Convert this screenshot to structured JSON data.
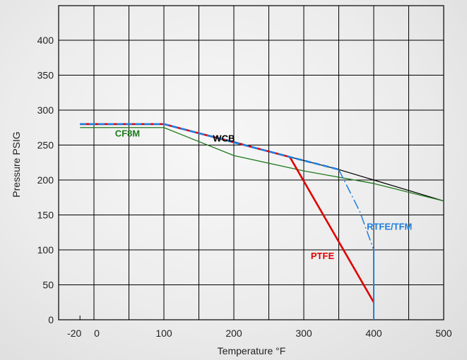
{
  "chart_data": {
    "type": "line",
    "title": "",
    "xlabel": "Temperature °F",
    "ylabel": "Pressure PSIG",
    "xlim": [
      -20,
      500
    ],
    "ylim": [
      0,
      450
    ],
    "x_ticks": [
      {
        "value": -20,
        "label": "-20"
      },
      {
        "value": 0,
        "label": "0"
      },
      {
        "value": 100,
        "label": "100"
      },
      {
        "value": 200,
        "label": "200"
      },
      {
        "value": 300,
        "label": "300"
      },
      {
        "value": 400,
        "label": "400"
      },
      {
        "value": 500,
        "label": "500"
      }
    ],
    "x_gridlines": [
      0,
      50,
      100,
      150,
      200,
      250,
      300,
      350,
      400,
      450,
      500
    ],
    "y_ticks": [
      0,
      50,
      100,
      150,
      200,
      250,
      300,
      350,
      400
    ],
    "grid": true,
    "series": [
      {
        "name": "WCB",
        "color": "#000000",
        "dash": "solid",
        "width": 1.2,
        "points": [
          [
            -20,
            280
          ],
          [
            100,
            280
          ],
          [
            200,
            255
          ],
          [
            280,
            233
          ],
          [
            350,
            215
          ],
          [
            400,
            200
          ],
          [
            500,
            170
          ]
        ],
        "label_at": [
          170,
          255
        ],
        "label_color": "#000000"
      },
      {
        "name": "CF8M",
        "color": "#1e7a1e",
        "dash": "solid",
        "width": 1.3,
        "points": [
          [
            -20,
            275
          ],
          [
            100,
            275
          ],
          [
            200,
            235
          ],
          [
            300,
            213
          ],
          [
            400,
            195
          ],
          [
            500,
            170
          ]
        ],
        "label_at": [
          30,
          262
        ],
        "label_color": "#1e7a1e"
      },
      {
        "name": "PTFE",
        "color": "#e00000",
        "dash": "solid",
        "width": 2.6,
        "points": [
          [
            -20,
            280
          ],
          [
            100,
            280
          ],
          [
            280,
            233
          ],
          [
            400,
            25
          ]
        ],
        "label_at": [
          310,
          87
        ],
        "label_color": "#e00000"
      },
      {
        "name": "RTFE/TFM",
        "color": "#1f7fe0",
        "dash": "dashdot",
        "width": 1.5,
        "points": [
          [
            350,
            215
          ],
          [
            380,
            155
          ],
          [
            400,
            100
          ],
          [
            400,
            25
          ]
        ],
        "label_at": [
          390,
          129
        ],
        "label_color": "#1f7fe0"
      },
      {
        "name": "",
        "color": "#1f7fe0",
        "dash": "dashed",
        "width": 2.6,
        "points": [
          [
            -20,
            280
          ],
          [
            100,
            280
          ],
          [
            280,
            233
          ],
          [
            350,
            215
          ]
        ]
      },
      {
        "name": "",
        "color": "#1f7fe0",
        "dash": "solid",
        "width": 2.0,
        "points": [
          [
            400,
            100
          ],
          [
            400,
            0
          ]
        ]
      }
    ]
  }
}
